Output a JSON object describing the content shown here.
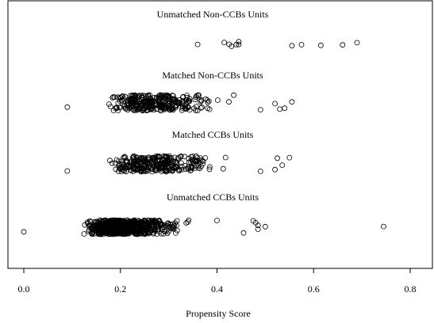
{
  "chart_data": {
    "type": "scatter",
    "title": "",
    "xlabel": "Propensity Score",
    "ylabel": "",
    "xlim": [
      -0.04,
      0.87
    ],
    "x_ticks": [
      {
        "value": 0.0,
        "label": "0.0"
      },
      {
        "value": 0.2,
        "label": "0.2"
      },
      {
        "value": 0.4,
        "label": "0.4"
      },
      {
        "value": 0.6,
        "label": "0.6"
      },
      {
        "value": 0.8,
        "label": "0.8"
      }
    ],
    "grid": false,
    "marker": "open-circle",
    "groups": [
      {
        "name": "Unmatched Non-CCBs Units",
        "points": [
          0.36,
          0.415,
          0.425,
          0.43,
          0.44,
          0.445,
          0.445,
          0.555,
          0.575,
          0.615,
          0.66,
          0.69
        ]
      },
      {
        "name": "Matched Non-CCBs Units",
        "range": [
          0.12,
          0.47
        ],
        "count": 320,
        "outliers": [
          0.09,
          0.49,
          0.52,
          0.53,
          0.54,
          0.555
        ]
      },
      {
        "name": "Matched CCBs Units",
        "range": [
          0.12,
          0.47
        ],
        "count": 320,
        "outliers": [
          0.09,
          0.49,
          0.52,
          0.525,
          0.535,
          0.55
        ]
      },
      {
        "name": "Unmatched CCBs Units",
        "range": [
          0.07,
          0.39
        ],
        "count": 650,
        "outliers": [
          0.0,
          0.4,
          0.455,
          0.475,
          0.48,
          0.485,
          0.485,
          0.5,
          0.745
        ]
      }
    ]
  }
}
